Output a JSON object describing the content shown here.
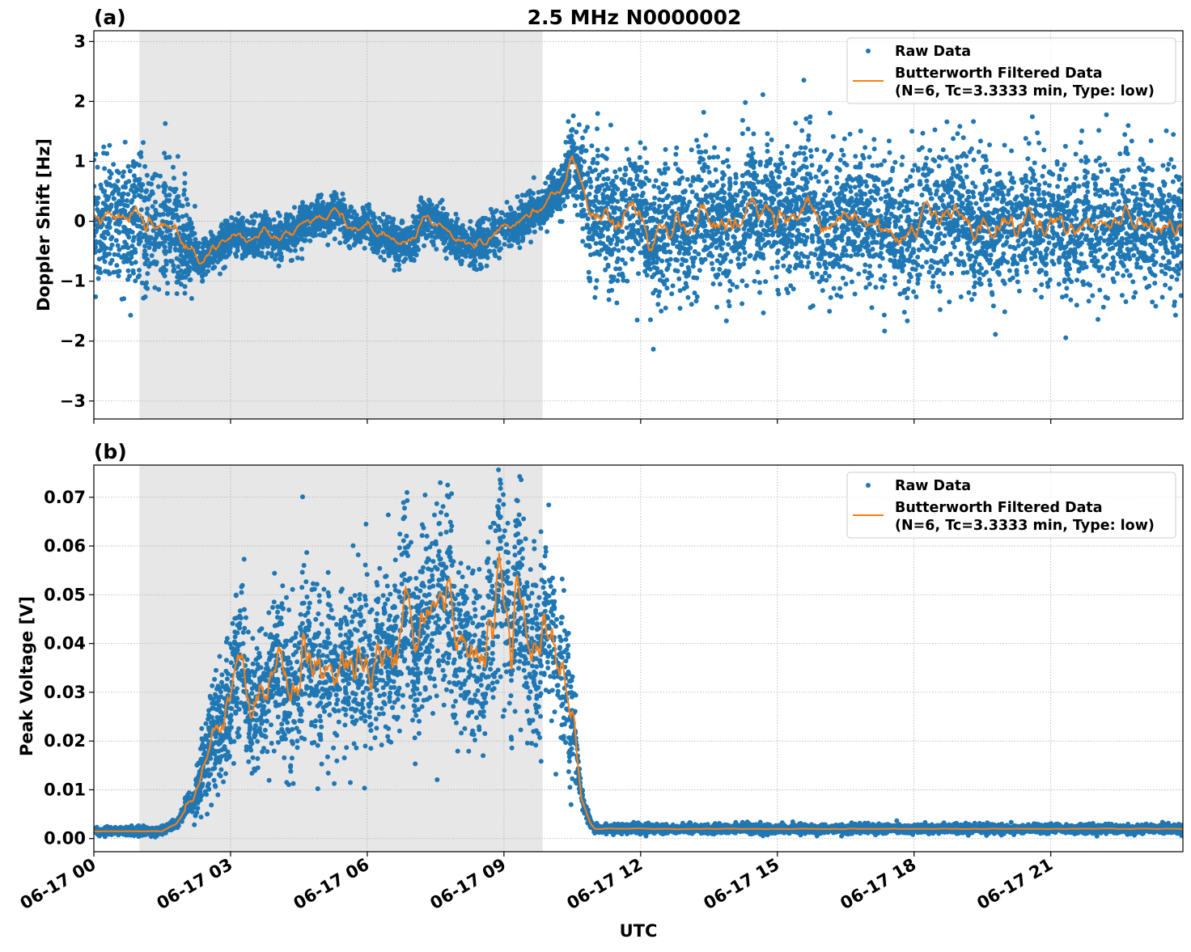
{
  "figure": {
    "title": "2.5 MHz N0000002",
    "xlabel": "UTC"
  },
  "colors": {
    "raw": "#1f77b4",
    "filtered": "#ff7f0e",
    "shade": "#e7e7e7",
    "grid": "#b0b0b0"
  },
  "chart_data": [
    {
      "type": "scatter",
      "panel_label": "(a)",
      "title": "2.5 MHz N0000002",
      "xlabel": "UTC",
      "ylabel": "Doppler Shift [Hz]",
      "x_unit": "hours since 06-17 00 UTC",
      "xlim": [
        0,
        23.9
      ],
      "ylim": [
        -3.3,
        3.18
      ],
      "grid": true,
      "shaded_interval_hours": [
        1.0,
        9.85
      ],
      "x_ticks": [
        0,
        3,
        6,
        9,
        12,
        15,
        18,
        21
      ],
      "x_tick_labels": [
        "06-17 00",
        "06-17 03",
        "06-17 06",
        "06-17 09",
        "06-17 12",
        "06-17 15",
        "06-17 18",
        "06-17 21"
      ],
      "y_ticks": [
        -3,
        -2,
        -1,
        0,
        1,
        2,
        3
      ],
      "y_tick_labels": [
        "−3",
        "−2",
        "−1",
        "0",
        "1",
        "2",
        "3"
      ],
      "legend": {
        "placement": "upper-right",
        "entries": [
          "Raw Data",
          "Butterworth Filtered Data",
          "(N=6, Tc=3.3333 min, Type: low)"
        ]
      },
      "series": [
        {
          "name": "Butterworth Filtered Data",
          "kind": "line",
          "x": [
            0,
            0.5,
            1,
            1.5,
            1.8,
            2.0,
            2.2,
            2.5,
            2.8,
            3,
            3.5,
            4,
            4.5,
            5,
            5.3,
            5.6,
            6,
            6.5,
            6.8,
            7,
            7.3,
            7.7,
            8,
            8.5,
            8.8,
            9.2,
            9.7,
            10,
            10.3,
            10.5,
            10.7,
            10.9,
            11.2,
            12,
            15,
            18,
            21,
            23.9
          ],
          "y": [
            0,
            0,
            0,
            -0.05,
            -0.1,
            -0.35,
            -0.5,
            -0.6,
            -0.3,
            -0.15,
            -0.2,
            -0.2,
            -0.05,
            0.05,
            0.2,
            -0.1,
            -0.2,
            -0.3,
            -0.35,
            -0.3,
            0.05,
            -0.1,
            -0.25,
            -0.35,
            -0.2,
            -0.1,
            0.2,
            0.35,
            0.6,
            1.1,
            0.6,
            0.1,
            0,
            0,
            0,
            0,
            0,
            0
          ],
          "wiggle": 0.18
        },
        {
          "name": "Raw Data",
          "kind": "scatter",
          "spread_x": [
            0,
            1.9,
            2.3,
            9.8,
            10.3,
            10.7,
            11,
            23.9
          ],
          "spread_sd": [
            0.5,
            0.5,
            0.16,
            0.18,
            0.2,
            0.5,
            0.55,
            0.55
          ]
        }
      ]
    },
    {
      "type": "scatter",
      "panel_label": "(b)",
      "xlabel": "UTC",
      "ylabel": "Peak Voltage [V]",
      "x_unit": "hours since 06-17 00 UTC",
      "xlim": [
        0,
        23.9
      ],
      "ylim": [
        -0.0027,
        0.0766
      ],
      "grid": true,
      "shaded_interval_hours": [
        1.0,
        9.85
      ],
      "x_ticks": [
        0,
        3,
        6,
        9,
        12,
        15,
        18,
        21
      ],
      "x_tick_labels": [
        "06-17 00",
        "06-17 03",
        "06-17 06",
        "06-17 09",
        "06-17 12",
        "06-17 15",
        "06-17 18",
        "06-17 21"
      ],
      "y_ticks": [
        0,
        0.01,
        0.02,
        0.03,
        0.04,
        0.05,
        0.06,
        0.07
      ],
      "y_tick_labels": [
        "0.00",
        "0.01",
        "0.02",
        "0.03",
        "0.04",
        "0.05",
        "0.06",
        "0.07"
      ],
      "legend": {
        "placement": "upper-right",
        "entries": [
          "Raw Data",
          "Butterworth Filtered Data",
          "(N=6, Tc=3.3333 min, Type: low)"
        ]
      },
      "series": [
        {
          "name": "Butterworth Filtered Data",
          "kind": "line",
          "x": [
            0,
            1.5,
            1.8,
            2.1,
            2.5,
            2.8,
            3,
            3.5,
            4,
            4.5,
            5,
            5.5,
            6,
            6.5,
            7,
            7.5,
            8,
            8.5,
            9,
            9.5,
            10,
            10.3,
            10.5,
            10.7,
            10.9,
            11,
            23.9
          ],
          "y": [
            0.0015,
            0.0015,
            0.003,
            0.007,
            0.016,
            0.022,
            0.027,
            0.028,
            0.032,
            0.033,
            0.036,
            0.036,
            0.037,
            0.037,
            0.04,
            0.046,
            0.042,
            0.043,
            0.044,
            0.04,
            0.041,
            0.035,
            0.026,
            0.008,
            0.003,
            0.002,
            0.002
          ],
          "wiggle_relative": 0.14
        },
        {
          "name": "Raw Data",
          "kind": "scatter",
          "spread_relative": 0.22,
          "spread_floor": 0.0003
        }
      ]
    }
  ]
}
